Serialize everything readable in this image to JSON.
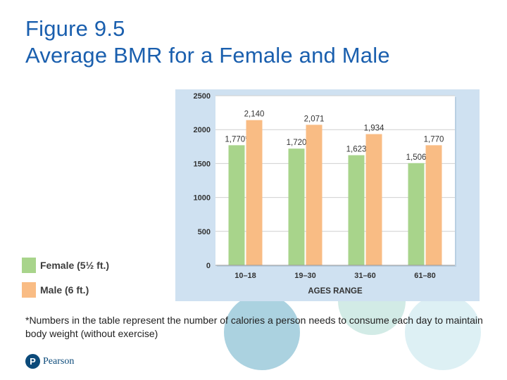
{
  "title": {
    "line1": "Figure 9.5",
    "line2": "Average BMR for a Female and Male"
  },
  "chart_data": {
    "type": "bar",
    "categories": [
      "10–18",
      "19–30",
      "31–60",
      "61–80"
    ],
    "series": [
      {
        "name": "Female (5½ ft.)",
        "values": [
          1770,
          1720,
          1623,
          1506
        ],
        "labels": [
          "1,770*",
          "1,720",
          "1,623",
          "1,506"
        ],
        "color": "#a8d48b"
      },
      {
        "name": "Male (6 ft.)",
        "values": [
          2140,
          2071,
          1934,
          1770
        ],
        "labels": [
          "2,140",
          "2,071",
          "1,934",
          "1,770"
        ],
        "color": "#f9bc84"
      }
    ],
    "xlabel": "AGES RANGE",
    "ylabel": "",
    "ylim": [
      0,
      2500
    ],
    "yticks": [
      0,
      500,
      1000,
      1500,
      2000,
      2500
    ],
    "legend_position": "bottom-left outside",
    "panel_color": "#cfe1f1",
    "plot_color": "#ffffff"
  },
  "footnote": "*Numbers in the table represent the number of calories a person needs to consume each day to maintain body weight (without exercise)",
  "logo": {
    "mark": "P",
    "text": "Pearson"
  }
}
